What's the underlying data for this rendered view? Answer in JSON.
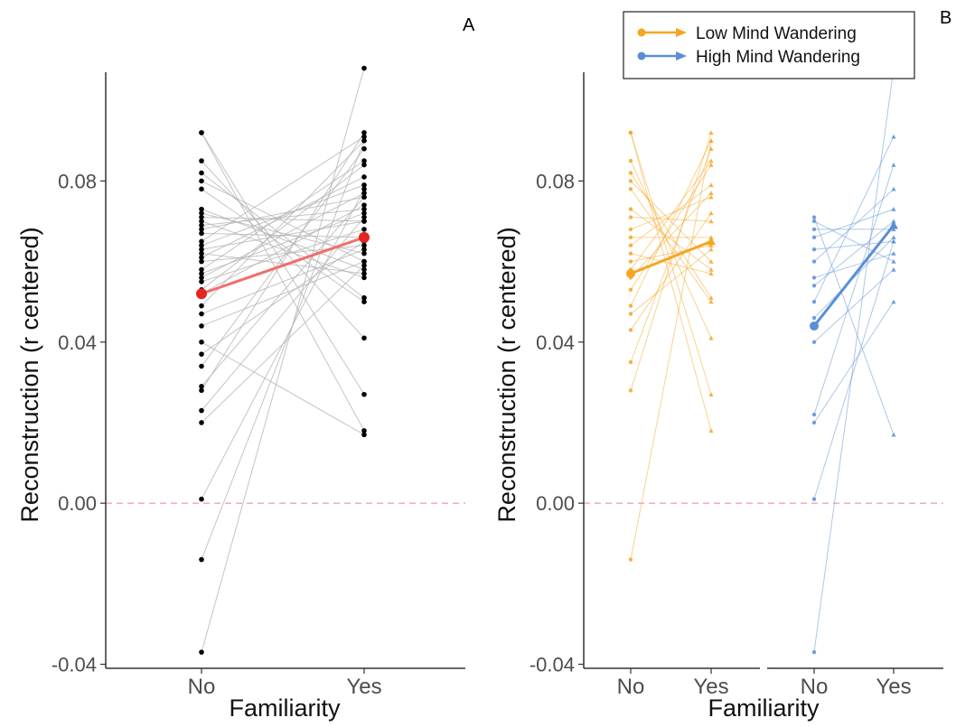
{
  "panel_labels": {
    "a": "A",
    "b": "B"
  },
  "colors": {
    "individual_line_a": "#b5b5b5",
    "individual_point_a": "#000000",
    "mean_a": "#f07068",
    "low": "#f5a623",
    "high": "#5b8fd4",
    "zero_line": "#f4a3ae",
    "axis": "#333333"
  },
  "chart_data": [
    {
      "type": "line",
      "panel": "A",
      "xlabel": "Familiarity",
      "ylabel": "Reconstruction (r centered)",
      "categories": [
        "No",
        "Yes"
      ],
      "ylim": [
        -0.041,
        0.107
      ],
      "yticks": [
        -0.04,
        0.0,
        0.04,
        0.08
      ],
      "ytick_labels": [
        "-0.04",
        "0.00",
        "0.04",
        "0.08"
      ],
      "reference_line": 0.0,
      "mean": {
        "no": 0.052,
        "yes": 0.066
      },
      "subjects": [
        [
          0.092,
          0.018
        ],
        [
          0.092,
          0.027
        ],
        [
          0.085,
          0.041
        ],
        [
          0.082,
          0.051
        ],
        [
          0.08,
          0.06
        ],
        [
          0.078,
          0.05
        ],
        [
          0.073,
          0.058
        ],
        [
          0.072,
          0.062
        ],
        [
          0.071,
          0.07
        ],
        [
          0.07,
          0.056
        ],
        [
          0.069,
          0.073
        ],
        [
          0.068,
          0.076
        ],
        [
          0.067,
          0.066
        ],
        [
          0.065,
          0.091
        ],
        [
          0.064,
          0.079
        ],
        [
          0.063,
          0.07
        ],
        [
          0.062,
          0.057
        ],
        [
          0.061,
          0.081
        ],
        [
          0.06,
          0.064
        ],
        [
          0.058,
          0.085
        ],
        [
          0.057,
          0.072
        ],
        [
          0.056,
          0.077
        ],
        [
          0.055,
          0.068
        ],
        [
          0.053,
          0.084
        ],
        [
          0.052,
          0.074
        ],
        [
          0.049,
          0.09
        ],
        [
          0.047,
          0.063
        ],
        [
          0.044,
          0.06
        ],
        [
          0.04,
          0.017
        ],
        [
          0.037,
          0.065
        ],
        [
          0.034,
          0.088
        ],
        [
          0.029,
          0.076
        ],
        [
          0.028,
          0.092
        ],
        [
          0.023,
          0.071
        ],
        [
          0.02,
          0.059
        ],
        [
          0.001,
          0.078
        ],
        [
          -0.014,
          0.09
        ],
        [
          -0.037,
          0.108
        ]
      ]
    },
    {
      "type": "line",
      "panel": "B",
      "xlabel": "Familiarity",
      "ylabel": "Reconstruction (r centered)",
      "facets": [
        {
          "name": "Low Mind Wandering",
          "categories": [
            "No",
            "Yes"
          ]
        },
        {
          "name": "High Mind Wandering",
          "categories": [
            "No",
            "Yes"
          ]
        }
      ],
      "ylim": [
        -0.041,
        0.107
      ],
      "yticks": [
        -0.04,
        0.0,
        0.04,
        0.08
      ],
      "ytick_labels": [
        "-0.04",
        "0.00",
        "0.04",
        "0.08"
      ],
      "reference_line": 0.0,
      "legend": {
        "placement": "top-right",
        "entries": [
          "Low Mind Wandering",
          "High Mind Wandering"
        ]
      },
      "series": [
        {
          "name": "Low Mind Wandering",
          "mean": {
            "no": 0.057,
            "yes": 0.065
          },
          "subjects": [
            [
              0.092,
              0.027
            ],
            [
              0.092,
              0.018
            ],
            [
              0.085,
              0.041
            ],
            [
              0.082,
              0.051
            ],
            [
              0.08,
              0.06
            ],
            [
              0.078,
              0.05
            ],
            [
              0.073,
              0.058
            ],
            [
              0.071,
              0.07
            ],
            [
              0.068,
              0.076
            ],
            [
              0.066,
              0.066
            ],
            [
              0.064,
              0.079
            ],
            [
              0.062,
              0.057
            ],
            [
              0.06,
              0.064
            ],
            [
              0.058,
              0.085
            ],
            [
              0.056,
              0.077
            ],
            [
              0.053,
              0.084
            ],
            [
              0.049,
              0.09
            ],
            [
              0.047,
              0.063
            ],
            [
              0.043,
              0.072
            ],
            [
              0.035,
              0.088
            ],
            [
              0.028,
              0.092
            ],
            [
              -0.014,
              0.09
            ]
          ]
        },
        {
          "name": "High Mind Wandering",
          "mean": {
            "no": 0.044,
            "yes": 0.069
          },
          "subjects": [
            [
              0.071,
              0.017
            ],
            [
              0.07,
              0.06
            ],
            [
              0.068,
              0.068
            ],
            [
              0.066,
              0.073
            ],
            [
              0.063,
              0.065
            ],
            [
              0.06,
              0.078
            ],
            [
              0.056,
              0.062
            ],
            [
              0.054,
              0.07
            ],
            [
              0.05,
              0.091
            ],
            [
              0.046,
              0.066
            ],
            [
              0.04,
              0.058
            ],
            [
              0.022,
              0.084
            ],
            [
              0.02,
              0.05
            ],
            [
              0.001,
              0.065
            ],
            [
              -0.037,
              0.108
            ]
          ]
        }
      ]
    }
  ]
}
